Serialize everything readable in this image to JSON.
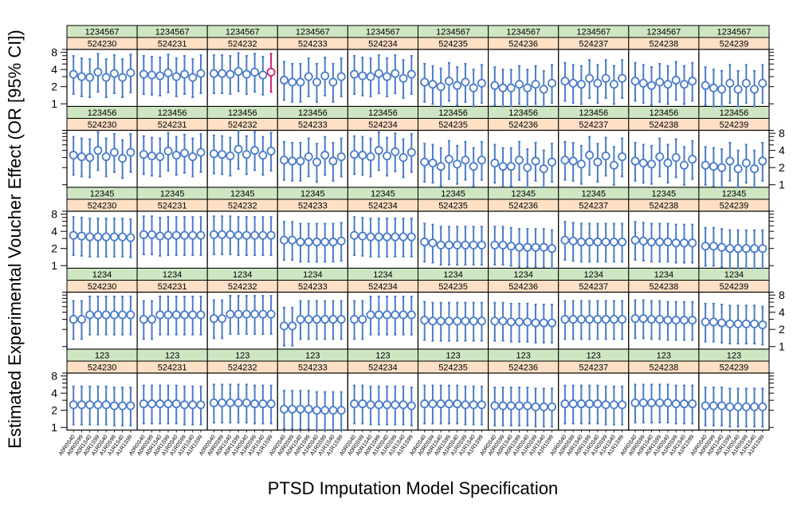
{
  "chart_data": {
    "type": "scatter",
    "subtype": "point-range-trellis",
    "xlabel": "PTSD Imputation Model Specification",
    "ylabel": "Estimated Experimental Voucher Effect (OR [95% CI])",
    "y_scale": "log",
    "ylim": [
      0.9,
      9
    ],
    "y_ticks": [
      1,
      2,
      4,
      8
    ],
    "reference_lines": [
      1,
      2,
      4,
      8
    ],
    "x_categories": [
      "A0R0S40",
      "A0R0S99",
      "A0R1S40",
      "A0R1S99",
      "A1R0S40",
      "A1R0S99",
      "A1R1S40",
      "A1R1S99"
    ],
    "column_strips": [
      "524230",
      "524231",
      "524232",
      "524233",
      "524234",
      "524235",
      "524236",
      "524237",
      "524238",
      "524239"
    ],
    "row_strips": [
      "1234567",
      "123456",
      "12345",
      "1234",
      "123"
    ],
    "point_color": "#4a7cc8",
    "highlight_color": "#d02070",
    "highlight": {
      "row": "1234567",
      "column": "524232",
      "category": "A1R1S99"
    },
    "panels": [
      {
        "row": "1234567",
        "estimates": [
          [
            3.3,
            3.0,
            2.9,
            3.6,
            2.9,
            3.4,
            2.9,
            3.5
          ],
          [
            3.3,
            3.2,
            3.1,
            3.5,
            3.0,
            3.3,
            2.9,
            3.4
          ],
          [
            3.4,
            3.4,
            3.3,
            3.7,
            3.3,
            3.6,
            3.2,
            3.6
          ],
          [
            2.6,
            2.4,
            2.4,
            3.0,
            2.4,
            3.1,
            2.4,
            3.0
          ],
          [
            3.3,
            3.1,
            3.0,
            3.4,
            3.0,
            3.4,
            2.8,
            3.3
          ],
          [
            2.4,
            2.2,
            2.0,
            2.5,
            2.1,
            2.4,
            1.9,
            2.3
          ],
          [
            2.1,
            1.9,
            1.9,
            2.2,
            1.9,
            2.2,
            1.8,
            2.3
          ],
          [
            2.5,
            2.3,
            2.2,
            2.8,
            2.3,
            2.8,
            2.2,
            2.8
          ],
          [
            2.5,
            2.3,
            2.1,
            2.4,
            2.2,
            2.6,
            2.2,
            2.5
          ],
          [
            2.1,
            1.9,
            1.8,
            2.3,
            1.8,
            2.3,
            1.8,
            2.3
          ]
        ]
      },
      {
        "row": "123456",
        "estimates": [
          [
            3.3,
            3.1,
            3.0,
            4.0,
            3.1,
            3.7,
            2.9,
            3.7
          ],
          [
            3.4,
            3.2,
            3.1,
            3.9,
            3.3,
            3.6,
            3.1,
            3.7
          ],
          [
            3.5,
            3.4,
            3.2,
            4.2,
            3.4,
            4.0,
            3.3,
            3.9
          ],
          [
            2.7,
            2.6,
            2.6,
            3.1,
            2.5,
            3.3,
            2.6,
            3.1
          ],
          [
            3.4,
            3.3,
            3.1,
            4.0,
            3.2,
            3.8,
            3.0,
            3.7
          ],
          [
            2.5,
            2.4,
            2.1,
            2.8,
            2.3,
            2.7,
            2.1,
            2.7
          ],
          [
            2.4,
            2.1,
            2.1,
            2.7,
            2.0,
            2.6,
            1.9,
            2.5
          ],
          [
            2.7,
            2.6,
            2.3,
            3.3,
            2.5,
            3.2,
            2.2,
            3.1
          ],
          [
            2.6,
            2.4,
            2.3,
            3.1,
            2.4,
            3.0,
            2.2,
            2.8
          ],
          [
            2.2,
            2.1,
            2.0,
            2.6,
            1.9,
            2.4,
            1.9,
            2.6
          ]
        ]
      },
      {
        "row": "12345",
        "estimates": [
          [
            3.4,
            3.3,
            3.2,
            3.2,
            3.2,
            3.2,
            3.2,
            3.1
          ],
          [
            3.5,
            3.5,
            3.3,
            3.4,
            3.4,
            3.4,
            3.4,
            3.4
          ],
          [
            3.5,
            3.5,
            3.5,
            3.4,
            3.4,
            3.4,
            3.4,
            3.4
          ],
          [
            2.8,
            2.8,
            2.6,
            2.6,
            2.6,
            2.6,
            2.6,
            2.7
          ],
          [
            3.4,
            3.3,
            3.2,
            3.2,
            3.2,
            3.2,
            3.2,
            3.2
          ],
          [
            2.6,
            2.5,
            2.3,
            2.3,
            2.3,
            2.3,
            2.3,
            2.3
          ],
          [
            2.3,
            2.3,
            2.2,
            2.1,
            2.1,
            2.1,
            2.1,
            2.0
          ],
          [
            2.8,
            2.7,
            2.6,
            2.6,
            2.6,
            2.6,
            2.6,
            2.6
          ],
          [
            2.8,
            2.7,
            2.6,
            2.6,
            2.6,
            2.5,
            2.5,
            2.5
          ],
          [
            2.2,
            2.2,
            2.1,
            2.0,
            2.0,
            2.0,
            2.0,
            2.0
          ]
        ]
      },
      {
        "row": "1234",
        "estimates": [
          [
            3.0,
            3.0,
            3.6,
            3.6,
            3.6,
            3.6,
            3.6,
            3.6
          ],
          [
            3.0,
            3.0,
            3.6,
            3.6,
            3.6,
            3.6,
            3.6,
            3.6
          ],
          [
            3.1,
            3.1,
            3.7,
            3.7,
            3.7,
            3.7,
            3.7,
            3.7
          ],
          [
            2.3,
            2.3,
            3.0,
            3.0,
            3.0,
            3.0,
            3.0,
            3.0
          ],
          [
            3.0,
            3.0,
            3.6,
            3.6,
            3.6,
            3.6,
            3.6,
            3.6
          ],
          [
            2.9,
            2.8,
            2.8,
            2.8,
            2.8,
            2.8,
            2.8,
            2.8
          ],
          [
            2.8,
            2.8,
            2.7,
            2.7,
            2.7,
            2.6,
            2.6,
            2.6
          ],
          [
            3.0,
            3.0,
            3.0,
            3.0,
            3.0,
            3.0,
            3.0,
            3.0
          ],
          [
            3.1,
            3.1,
            3.0,
            3.0,
            2.9,
            2.9,
            2.9,
            2.9
          ],
          [
            2.7,
            2.7,
            2.6,
            2.5,
            2.5,
            2.5,
            2.5,
            2.4
          ]
        ]
      },
      {
        "row": "123",
        "estimates": [
          [
            2.5,
            2.5,
            2.5,
            2.5,
            2.5,
            2.4,
            2.4,
            2.4
          ],
          [
            2.6,
            2.6,
            2.6,
            2.6,
            2.6,
            2.5,
            2.5,
            2.5
          ],
          [
            2.7,
            2.7,
            2.7,
            2.7,
            2.7,
            2.6,
            2.6,
            2.6
          ],
          [
            2.1,
            2.1,
            2.1,
            2.1,
            2.0,
            2.0,
            2.0,
            2.0
          ],
          [
            2.6,
            2.6,
            2.5,
            2.5,
            2.5,
            2.5,
            2.5,
            2.4
          ],
          [
            2.6,
            2.6,
            2.6,
            2.6,
            2.6,
            2.5,
            2.5,
            2.5
          ],
          [
            2.4,
            2.4,
            2.4,
            2.4,
            2.4,
            2.3,
            2.3,
            2.3
          ],
          [
            2.6,
            2.6,
            2.6,
            2.6,
            2.6,
            2.5,
            2.5,
            2.5
          ],
          [
            2.7,
            2.7,
            2.7,
            2.7,
            2.7,
            2.6,
            2.6,
            2.6
          ],
          [
            2.4,
            2.4,
            2.4,
            2.3,
            2.3,
            2.3,
            2.3,
            2.3
          ]
        ]
      }
    ],
    "ci_lower_ratio": 0.45,
    "ci_upper_ratio": 2.1
  }
}
